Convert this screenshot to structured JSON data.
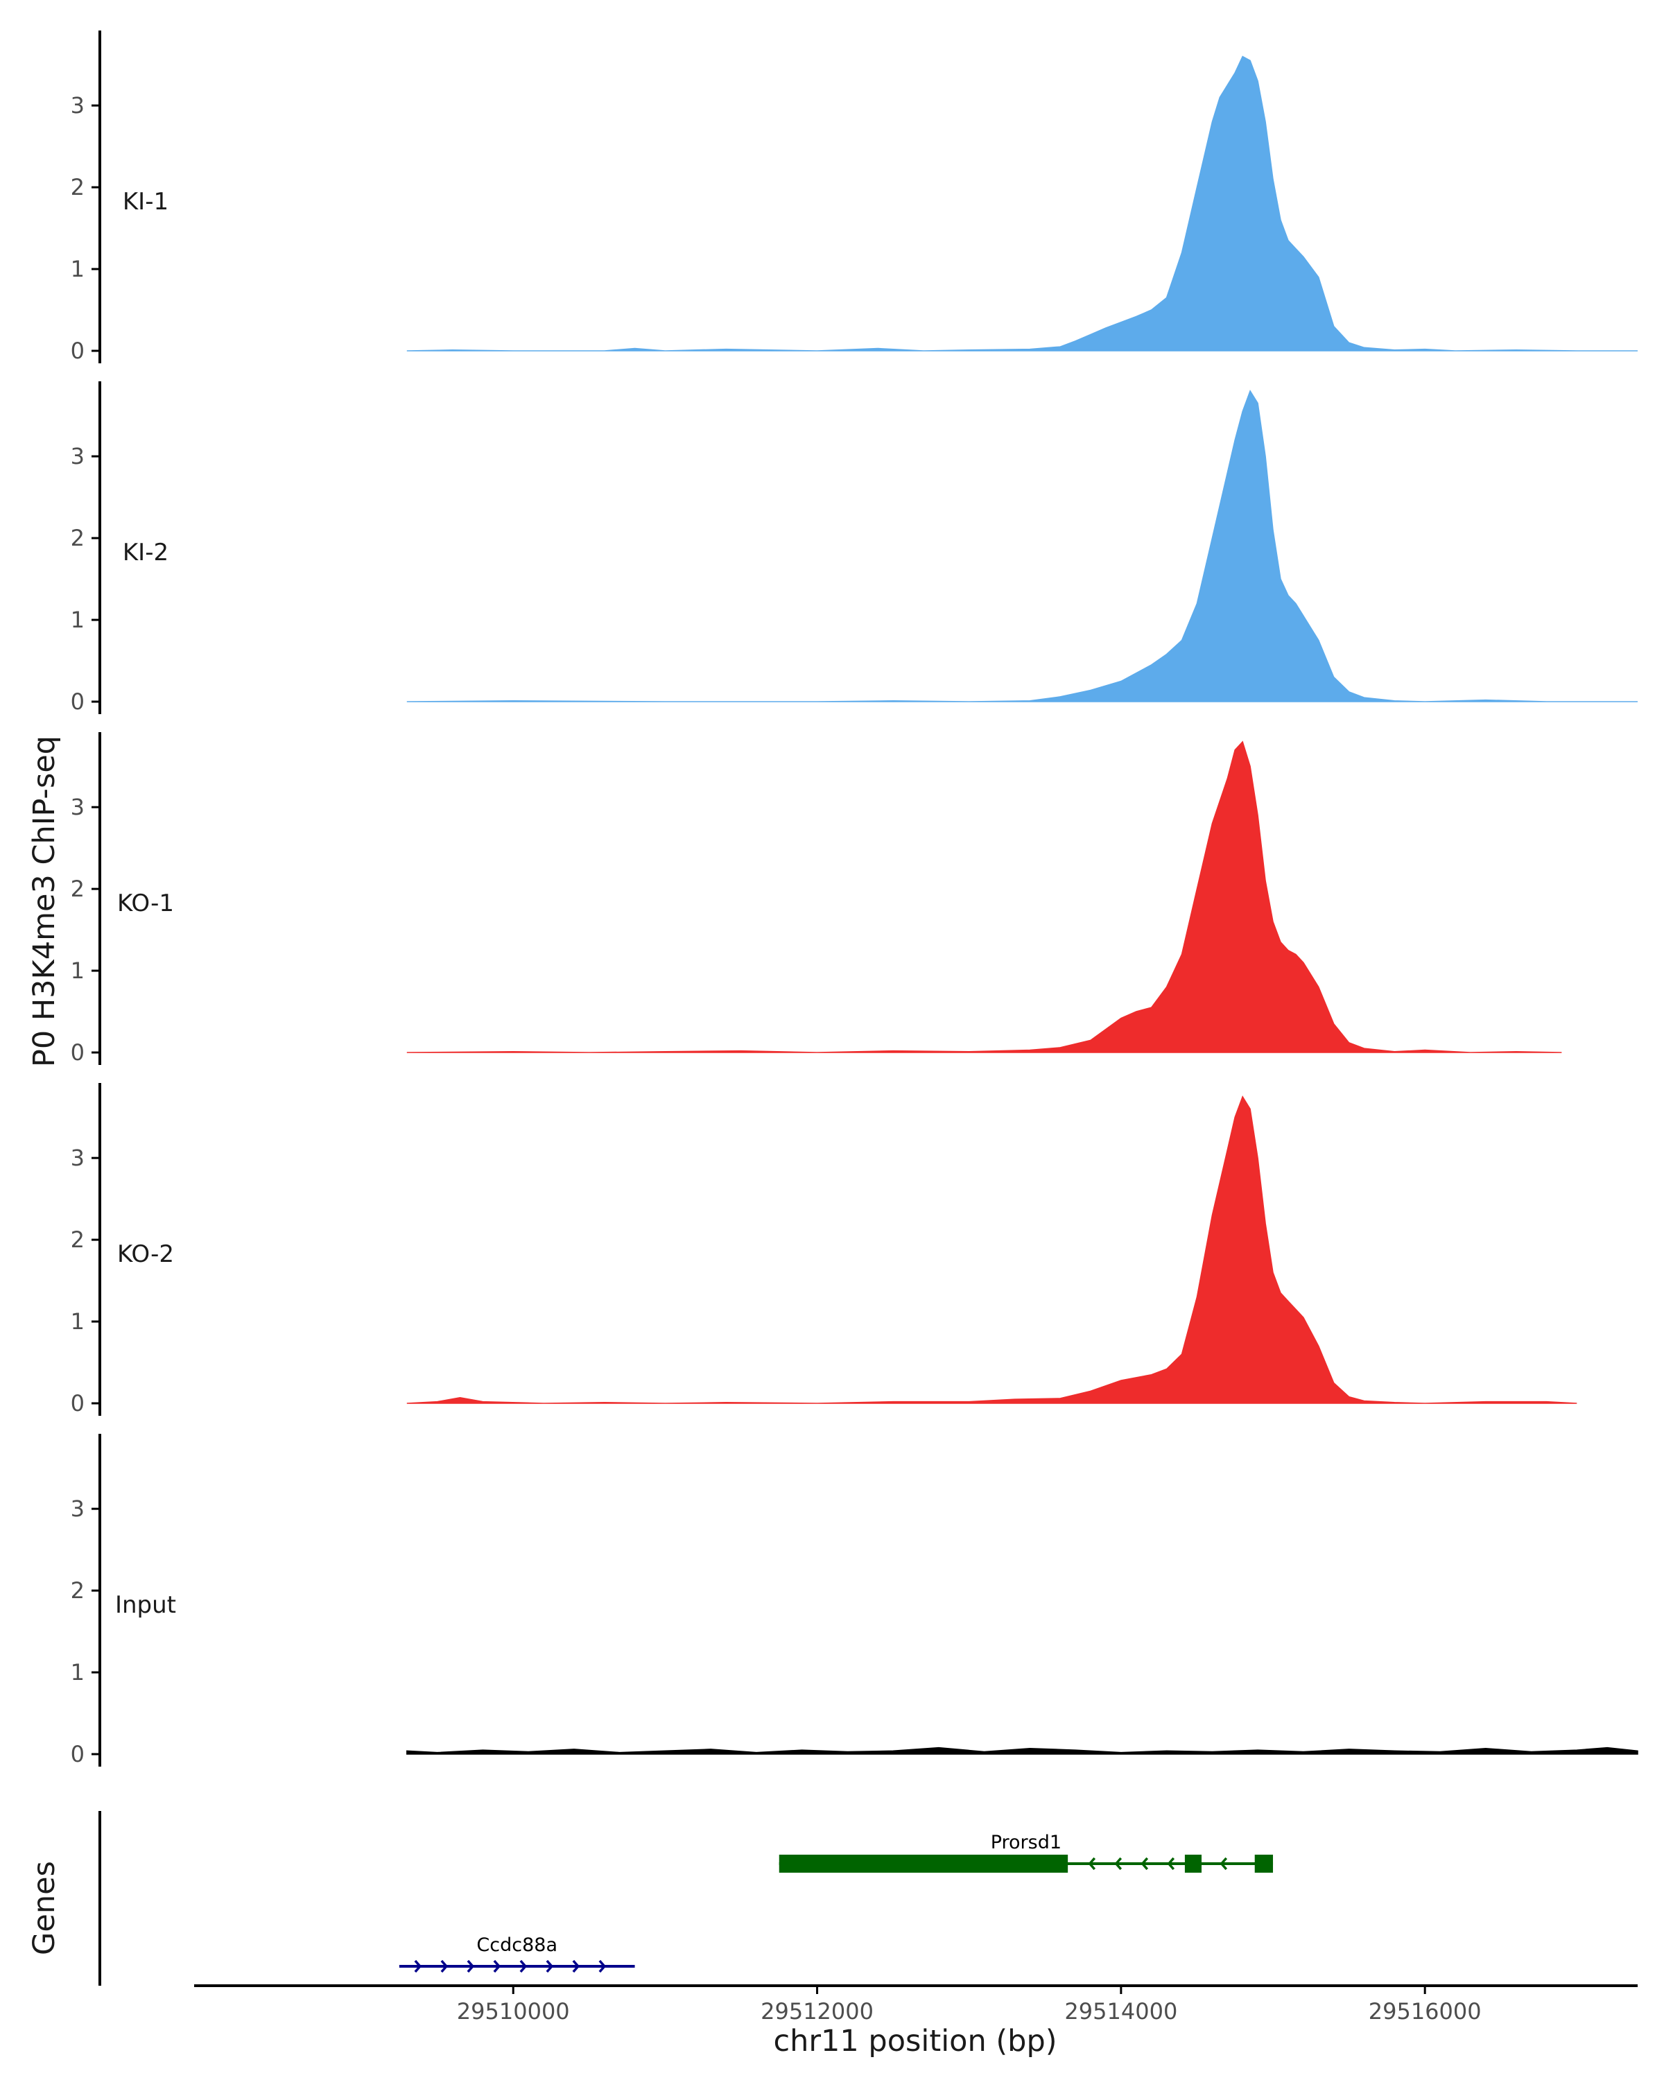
{
  "chart_data": {
    "type": "area",
    "ylabel": "P0 H3K4me3 ChIP-seq",
    "xlabel": "chr11 position (bp)",
    "genes_label": "Genes",
    "xlim": [
      29507900,
      29517400
    ],
    "ylim": [
      0,
      3.9
    ],
    "y_ticks": [
      0,
      1,
      2,
      3
    ],
    "x_ticks": [
      29510000,
      29512000,
      29514000,
      29516000
    ],
    "x_tick_labels": [
      "29510000",
      "29512000",
      "29514000",
      "29516000"
    ],
    "colors": {
      "KI": "#5dabeb",
      "KO": "#ee2c2c",
      "Input": "#000000",
      "Prorsd1": "#006400",
      "Ccdc88a": "#00008b"
    },
    "series": [
      {
        "name": "KI-1",
        "color": "#5dabeb",
        "x": [
          29509300,
          29509600,
          29510000,
          29510600,
          29510800,
          29511000,
          29511400,
          29512000,
          29512400,
          29512700,
          29513000,
          29513400,
          29513600,
          29513700,
          29513800,
          29513900,
          29514000,
          29514100,
          29514200,
          29514300,
          29514400,
          29514500,
          29514600,
          29514650,
          29514700,
          29514750,
          29514800,
          29514850,
          29514900,
          29514950,
          29515000,
          29515050,
          29515100,
          29515150,
          29515200,
          29515300,
          29515400,
          29515500,
          29515600,
          29515800,
          29516000,
          29516200,
          29516600,
          29517000,
          29517400
        ],
        "values": [
          0,
          0.01,
          0,
          0,
          0.03,
          0,
          0.02,
          0,
          0.03,
          0,
          0.01,
          0.02,
          0.05,
          0.12,
          0.2,
          0.28,
          0.35,
          0.42,
          0.5,
          0.65,
          1.2,
          2.0,
          2.8,
          3.1,
          3.25,
          3.4,
          3.6,
          3.55,
          3.3,
          2.8,
          2.1,
          1.6,
          1.35,
          1.25,
          1.15,
          0.9,
          0.3,
          0.1,
          0.04,
          0.01,
          0.02,
          0,
          0.01,
          0,
          0
        ]
      },
      {
        "name": "KI-2",
        "color": "#5dabeb",
        "x": [
          29509300,
          29510000,
          29511000,
          29512000,
          29512500,
          29513000,
          29513400,
          29513600,
          29513800,
          29514000,
          29514200,
          29514300,
          29514400,
          29514500,
          29514600,
          29514700,
          29514750,
          29514800,
          29514850,
          29514900,
          29514950,
          29515000,
          29515050,
          29515100,
          29515150,
          29515200,
          29515300,
          29515400,
          29515500,
          29515600,
          29515800,
          29516000,
          29516400,
          29516800,
          29517400
        ],
        "values": [
          0,
          0.01,
          0,
          0,
          0.01,
          0,
          0.01,
          0.06,
          0.14,
          0.25,
          0.45,
          0.58,
          0.75,
          1.2,
          2.0,
          2.8,
          3.2,
          3.55,
          3.8,
          3.65,
          3.0,
          2.1,
          1.5,
          1.3,
          1.2,
          1.05,
          0.75,
          0.3,
          0.12,
          0.05,
          0.01,
          0,
          0.02,
          0,
          0
        ]
      },
      {
        "name": "KO-1",
        "color": "#ee2c2c",
        "x": [
          29509300,
          29510000,
          29510500,
          29511000,
          29511500,
          29512000,
          29512500,
          29513000,
          29513400,
          29513600,
          29513800,
          29514000,
          29514100,
          29514200,
          29514300,
          29514400,
          29514500,
          29514600,
          29514700,
          29514750,
          29514800,
          29514850,
          29514900,
          29514950,
          29515000,
          29515050,
          29515100,
          29515150,
          29515200,
          29515300,
          29515400,
          29515500,
          29515600,
          29515800,
          29516000,
          29516300,
          29516600,
          29516900
        ],
        "values": [
          0,
          0.01,
          0,
          0.01,
          0.02,
          0,
          0.02,
          0.01,
          0.03,
          0.06,
          0.15,
          0.42,
          0.5,
          0.55,
          0.8,
          1.2,
          2.0,
          2.8,
          3.35,
          3.7,
          3.8,
          3.5,
          2.9,
          2.1,
          1.6,
          1.35,
          1.25,
          1.2,
          1.1,
          0.8,
          0.35,
          0.12,
          0.05,
          0.01,
          0.03,
          0,
          0.01,
          0
        ]
      },
      {
        "name": "KO-2",
        "color": "#ee2c2c",
        "x": [
          29509300,
          29509500,
          29509650,
          29509800,
          29510200,
          29510600,
          29511000,
          29511400,
          29512000,
          29512500,
          29513000,
          29513300,
          29513600,
          29513800,
          29514000,
          29514200,
          29514300,
          29514400,
          29514500,
          29514600,
          29514700,
          29514750,
          29514800,
          29514850,
          29514900,
          29514950,
          29515000,
          29515050,
          29515100,
          29515150,
          29515200,
          29515300,
          29515400,
          29515500,
          29515600,
          29515800,
          29516000,
          29516400,
          29516800,
          29517000
        ],
        "values": [
          0,
          0.02,
          0.07,
          0.02,
          0,
          0.01,
          0,
          0.01,
          0,
          0.02,
          0.02,
          0.05,
          0.06,
          0.15,
          0.28,
          0.35,
          0.42,
          0.6,
          1.3,
          2.3,
          3.1,
          3.5,
          3.75,
          3.6,
          3.0,
          2.2,
          1.6,
          1.35,
          1.25,
          1.15,
          1.05,
          0.7,
          0.25,
          0.08,
          0.03,
          0.01,
          0,
          0.02,
          0.02,
          0
        ]
      },
      {
        "name": "Input",
        "color": "#000000",
        "x": [
          29509300,
          29509500,
          29509800,
          29510100,
          29510400,
          29510700,
          29511000,
          29511300,
          29511600,
          29511900,
          29512200,
          29512500,
          29512800,
          29513100,
          29513400,
          29513700,
          29514000,
          29514300,
          29514600,
          29514900,
          29515200,
          29515500,
          29515800,
          29516100,
          29516400,
          29516700,
          29517000,
          29517200,
          29517400
        ],
        "values": [
          0.04,
          0.02,
          0.05,
          0.03,
          0.06,
          0.02,
          0.04,
          0.06,
          0.02,
          0.05,
          0.03,
          0.04,
          0.08,
          0.03,
          0.07,
          0.05,
          0.02,
          0.04,
          0.03,
          0.05,
          0.03,
          0.06,
          0.04,
          0.03,
          0.07,
          0.03,
          0.05,
          0.08,
          0.04
        ]
      }
    ],
    "genes": [
      {
        "name": "Ccdc88a",
        "strand": "+",
        "color": "#00008b",
        "start": 29509250,
        "end": 29510800,
        "row": 1,
        "exons": []
      },
      {
        "name": "Prorsd1",
        "strand": "-",
        "color": "#006400",
        "start": 29511750,
        "end": 29515000,
        "row": 0,
        "exons": [
          {
            "start": 29511750,
            "end": 29513650
          },
          {
            "start": 29514420,
            "end": 29514530
          },
          {
            "start": 29514880,
            "end": 29515000
          }
        ]
      }
    ]
  }
}
